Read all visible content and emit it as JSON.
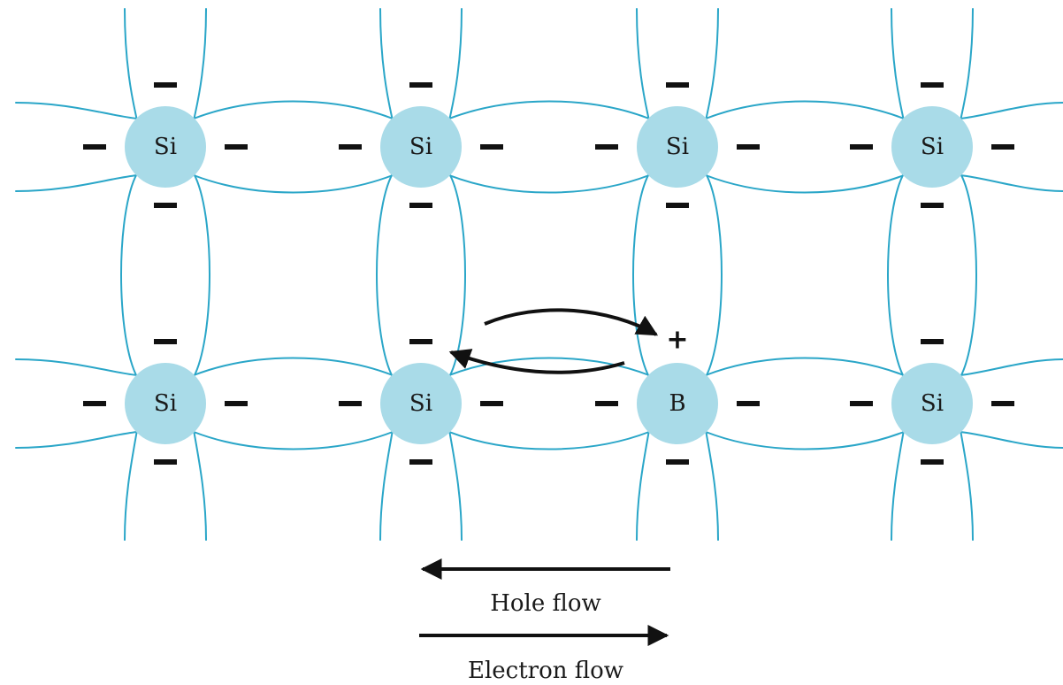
{
  "diagram": {
    "colors": {
      "bond": "#2aa6c8",
      "atom_fill": "#a9dbe8",
      "ink": "#111111"
    },
    "rows": [
      [
        "Si",
        "Si",
        "Si",
        "Si"
      ],
      [
        "Si",
        "Si",
        "B",
        "Si"
      ]
    ],
    "hole_charge": "+",
    "legend": {
      "hole_flow": "Hole flow",
      "electron_flow": "Electron flow"
    }
  }
}
